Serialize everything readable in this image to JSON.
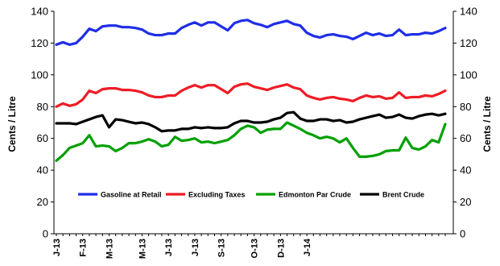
{
  "chart_data": {
    "type": "line",
    "ylabel_left": "Cents / Litre",
    "ylabel_right": "Cents / Litre",
    "ylim": [
      0,
      140
    ],
    "yticks": [
      0,
      20,
      40,
      60,
      80,
      100,
      120,
      140
    ],
    "x_tick_labels": [
      "J-13",
      "F-13",
      "M-13",
      "M-13",
      "J-13",
      "J-13",
      "S-13",
      "O-13",
      "D-13",
      "J-14"
    ],
    "x_tick_positions": [
      0,
      4,
      8,
      13,
      17,
      21,
      25,
      30,
      34,
      38
    ],
    "grid": false,
    "legend_position": "inside-lower",
    "series": [
      {
        "name": "Gasoline at Retail",
        "color": "#1f2ee6",
        "values": [
          119,
          120.5,
          119,
          120,
          124,
          129,
          127.5,
          130.5,
          131,
          131,
          130,
          130,
          129.5,
          128.5,
          126,
          125,
          125,
          126,
          126,
          129.5,
          131.5,
          133,
          131,
          133,
          133,
          130.5,
          128,
          132.5,
          134,
          134.5,
          132.5,
          131.5,
          130,
          132,
          133,
          134,
          132,
          131,
          126.5,
          124.5,
          123.5,
          125,
          125.5,
          124.5,
          124,
          122.5,
          124.5,
          126.5,
          125,
          126,
          124.5,
          125,
          128.5,
          125,
          125.5,
          125.5,
          126.5,
          126,
          127.5,
          129.5
        ]
      },
      {
        "name": "Excluding Taxes",
        "color": "#ee1c25",
        "values": [
          80,
          82,
          80.5,
          81.5,
          84.5,
          90,
          88.5,
          91,
          91.5,
          91.5,
          90.5,
          90.5,
          90,
          89,
          87,
          86,
          86,
          87,
          87,
          90,
          92,
          93.5,
          92,
          93.5,
          93.5,
          91,
          88.5,
          92.5,
          94,
          94.5,
          92.5,
          91.5,
          90.5,
          92,
          93,
          94,
          92,
          91,
          87,
          85.5,
          84.5,
          85.5,
          86,
          85,
          84.5,
          83.5,
          85.5,
          87,
          86,
          86.5,
          85,
          85.5,
          89,
          85.5,
          86,
          86,
          87,
          86.5,
          88,
          90
        ]
      },
      {
        "name": "Edmonton Par Crude",
        "color": "#00a000",
        "values": [
          46,
          49.5,
          54,
          55.5,
          57,
          62,
          55,
          55.5,
          55,
          52,
          54,
          57,
          57,
          58,
          59.5,
          58,
          55,
          56,
          61,
          58.5,
          59,
          60,
          57.5,
          58,
          57,
          58,
          59,
          62,
          66,
          68,
          67,
          63.5,
          65.5,
          66,
          66,
          70,
          68,
          66,
          63.5,
          62,
          60,
          61,
          60,
          57.5,
          60,
          54,
          48.5,
          48.5,
          49,
          50,
          52,
          52.5,
          52.5,
          60.5,
          54,
          53,
          55,
          59,
          57.5,
          69
        ]
      },
      {
        "name": "Brent Crude",
        "color": "#000000",
        "values": [
          69.5,
          69.5,
          69.5,
          69,
          70.5,
          72,
          73.5,
          74.5,
          67,
          72,
          71.5,
          70.5,
          69.5,
          70,
          69,
          67,
          64.5,
          65,
          65,
          66,
          66,
          67,
          66.5,
          67,
          66.5,
          66.5,
          67,
          69.5,
          71,
          71,
          70,
          70,
          70.5,
          72,
          73,
          76,
          76.5,
          72.5,
          71,
          71,
          72,
          72,
          71,
          71.5,
          70,
          70.5,
          72,
          73,
          74,
          75,
          73,
          73.5,
          75,
          73,
          72.5,
          74,
          75,
          75.5,
          74.5,
          75.5
        ]
      }
    ]
  }
}
